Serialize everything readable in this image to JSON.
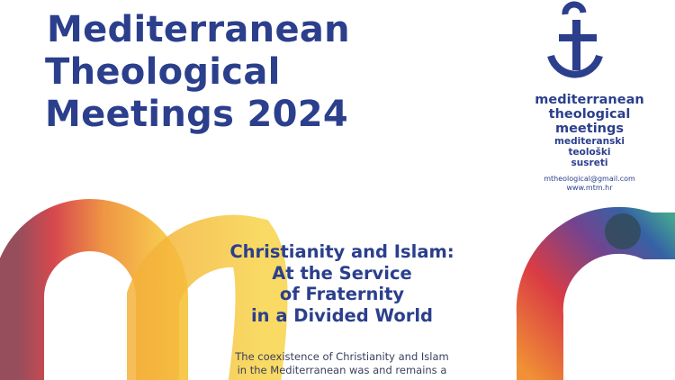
{
  "title": {
    "lines": [
      "Mediterranean",
      "Theological",
      "Meetings 2024"
    ]
  },
  "logo": {
    "icon": "anchor-cross-t-icon",
    "name_en": [
      "mediterranean",
      "theological",
      "meetings"
    ],
    "name_hr": [
      "mediteranski",
      "teološki",
      "susreti"
    ],
    "email": "mtheological@gmail.com",
    "website": "www.mtm.hr"
  },
  "headline": [
    "Christianity and Islam:",
    "At the Service",
    "of Fraternity",
    "in a Divided World"
  ],
  "body": [
    "The coexistence of Christianity and Islam",
    "in the Mediterranean was and remains a"
  ],
  "colors": {
    "brand_blue": "#2b3f8c",
    "red": "#c8323a",
    "orange": "#ef8a2d",
    "yellow": "#f5c43a",
    "teal": "#3a9a8a"
  }
}
